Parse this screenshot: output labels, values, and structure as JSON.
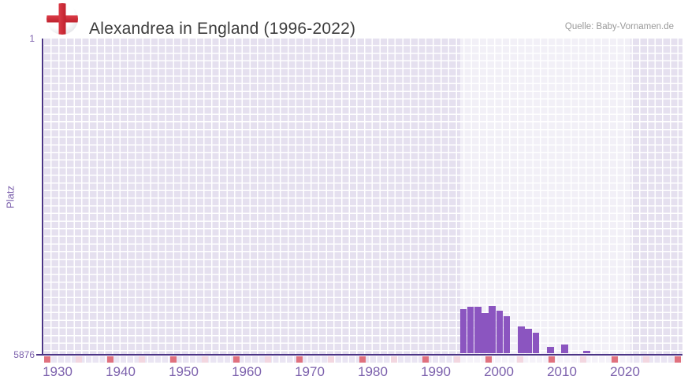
{
  "header": {
    "title": "Alexandrea in England (1996-2022)",
    "source": "Quelle: Baby-Vornamen.de",
    "flag_icon": "england-flag"
  },
  "chart_data": {
    "type": "bar",
    "title": "Alexandrea in England (1996-2022)",
    "xlabel": "",
    "ylabel": "Platz",
    "y_axis": {
      "inverted": true,
      "top_label": "1",
      "bottom_label": "5876",
      "min": 1,
      "max": 5876
    },
    "x_axis": {
      "tick_labels": [
        "1930",
        "1940",
        "1950",
        "1960",
        "1970",
        "1980",
        "1990",
        "2000",
        "2010",
        "2020"
      ],
      "range_start": 1928,
      "range_end": 2031
    },
    "highlight_period": {
      "start_year": 1996,
      "end_year": 2022
    },
    "decade_marks": [
      1930,
      1940,
      1950,
      1960,
      1970,
      1980,
      1990,
      2000,
      2010,
      2020,
      2030
    ],
    "half_decade_marks": [
      1935,
      1945,
      1955,
      1965,
      1975,
      1985,
      1995,
      2005,
      2015,
      2025
    ],
    "points": [
      {
        "year": 1996,
        "rank": 5050
      },
      {
        "year": 1997,
        "rank": 5000
      },
      {
        "year": 1998,
        "rank": 5000
      },
      {
        "year": 1999,
        "rank": 5120
      },
      {
        "year": 2000,
        "rank": 4990
      },
      {
        "year": 2001,
        "rank": 5070
      },
      {
        "year": 2002,
        "rank": 5180
      },
      {
        "year": 2004,
        "rank": 5370
      },
      {
        "year": 2005,
        "rank": 5410
      },
      {
        "year": 2006,
        "rank": 5490
      },
      {
        "year": 2008,
        "rank": 5750
      },
      {
        "year": 2010,
        "rank": 5700
      },
      {
        "year": 2013,
        "rank": 5830
      }
    ],
    "legend": null,
    "grid": true,
    "colors": {
      "bar": "#8b55c0",
      "axis_line": "#4b3486",
      "tick_label": "#7d62ad",
      "decade_mark": "#e0717e",
      "half_decade_mark": "#f3d7e0",
      "plot_cell": "#e5e0ef",
      "title_text": "#3d3d3d",
      "source_text": "#999999",
      "flag_red": "#c9303c"
    }
  }
}
